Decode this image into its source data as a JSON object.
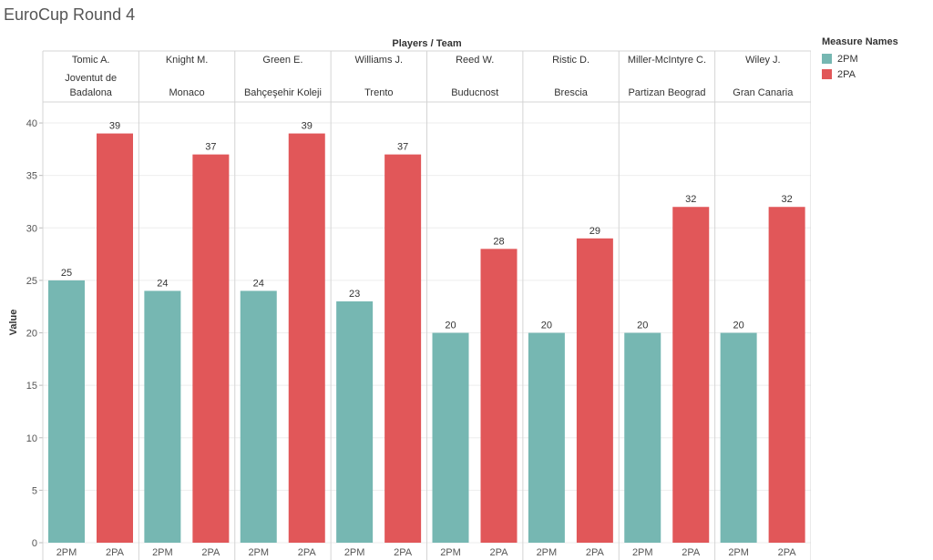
{
  "page": {
    "title": "EuroCup Round 4"
  },
  "legend": {
    "title": "Measure Names",
    "items": [
      {
        "label": "2PM",
        "color": "#76b7b2"
      },
      {
        "label": "2PA",
        "color": "#e15759"
      }
    ]
  },
  "chart_data": {
    "type": "bar",
    "title": "EuroCup Round 4",
    "column_header": "Players / Team",
    "ylabel": "Value",
    "ylim": [
      0,
      42
    ],
    "yticks": [
      0,
      5,
      10,
      15,
      20,
      25,
      30,
      35,
      40
    ],
    "grid": true,
    "legend_placement": "right",
    "groups": [
      {
        "player": "Tomic A.",
        "team": [
          "Joventut de",
          "Badalona"
        ],
        "values": {
          "2PM": 25,
          "2PA": 39
        }
      },
      {
        "player": "Knight M.",
        "team": [
          "Monaco"
        ],
        "values": {
          "2PM": 24,
          "2PA": 37
        }
      },
      {
        "player": "Green E.",
        "team": [
          "Bahçeşehir Koleji"
        ],
        "values": {
          "2PM": 24,
          "2PA": 39
        }
      },
      {
        "player": "Williams J.",
        "team": [
          "Trento"
        ],
        "values": {
          "2PM": 23,
          "2PA": 37
        }
      },
      {
        "player": "Reed W.",
        "team": [
          "Buducnost"
        ],
        "values": {
          "2PM": 20,
          "2PA": 28
        }
      },
      {
        "player": "Ristic D.",
        "team": [
          "Brescia"
        ],
        "values": {
          "2PM": 20,
          "2PA": 29
        }
      },
      {
        "player": "Miller-McIntyre C.",
        "team": [
          "Partizan Beograd"
        ],
        "values": {
          "2PM": 20,
          "2PA": 32
        }
      },
      {
        "player": "Wiley J.",
        "team": [
          "Gran Canaria"
        ],
        "values": {
          "2PM": 20,
          "2PA": 32
        }
      }
    ],
    "series": [
      {
        "name": "2PM",
        "color": "#76b7b2"
      },
      {
        "name": "2PA",
        "color": "#e15759"
      }
    ]
  }
}
